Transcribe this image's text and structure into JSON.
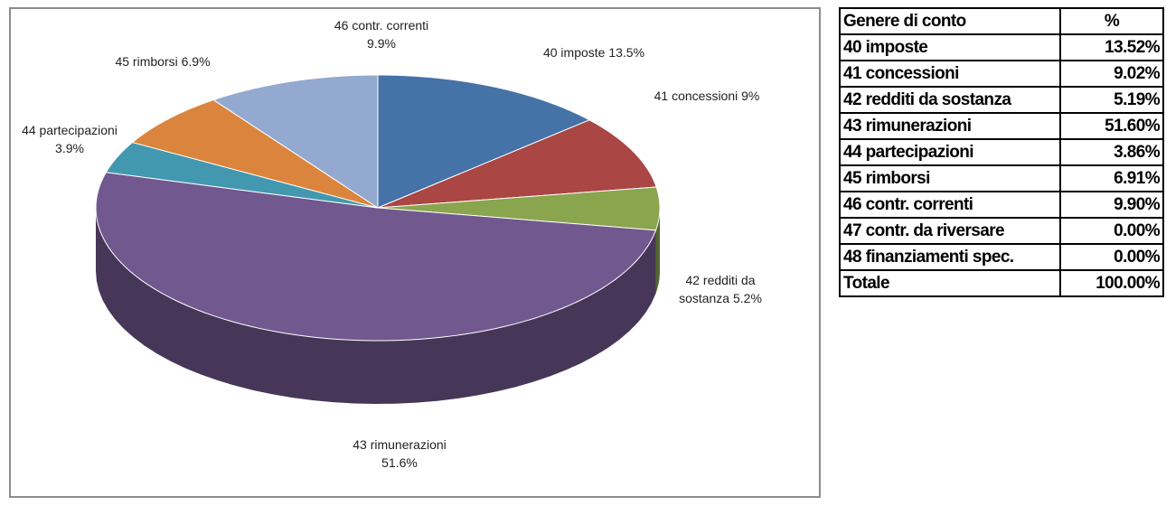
{
  "chart_data": {
    "type": "pie",
    "categories": [
      "40 imposte",
      "41 concessioni",
      "42 redditi da sostanza",
      "43 rimunerazioni",
      "44 partecipazioni",
      "45 rimborsi",
      "46 contr. correnti"
    ],
    "values": [
      13.5,
      9,
      5.2,
      51.6,
      3.9,
      6.9,
      9.9
    ],
    "value_labels": [
      "13.5%",
      "9%",
      "5.2%",
      "51.6%",
      "3.9%",
      "6.9%",
      "9.9%"
    ],
    "colors": [
      "#4572a7",
      "#aa4643",
      "#89a54e",
      "#71588f",
      "#4198af",
      "#db843d",
      "#93a9cf"
    ]
  },
  "table": {
    "header": [
      "Genere di conto",
      "%"
    ],
    "rows": [
      [
        "40 imposte",
        "13.52%"
      ],
      [
        "41 concessioni",
        "9.02%"
      ],
      [
        "42 redditi da sostanza",
        "5.19%"
      ],
      [
        "43 rimunerazioni",
        "51.60%"
      ],
      [
        "44 partecipazioni",
        "3.86%"
      ],
      [
        "45 rimborsi",
        "6.91%"
      ],
      [
        "46 contr. correnti",
        "9.90%"
      ],
      [
        "47 contr. da riversare",
        "0.00%"
      ],
      [
        "48 finanziamenti spec.",
        "0.00%"
      ],
      [
        "Totale",
        "100.00%"
      ]
    ]
  }
}
